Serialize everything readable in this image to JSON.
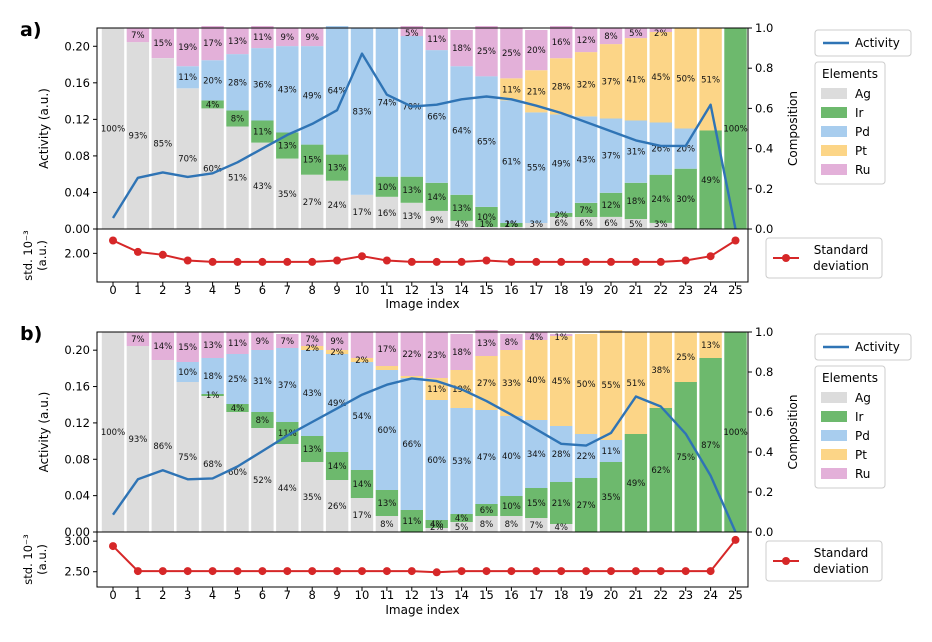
{
  "colors": {
    "Ag": "#dcdcdc",
    "Ir": "#6db96d",
    "Pd": "#a8cdee",
    "Pt": "#fcd587",
    "Ru": "#e3b0d9",
    "activity": "#2f74b5",
    "std": "#d62728"
  },
  "chart_data": [
    {
      "panel_label": "a)",
      "type": "bar",
      "stacked": true,
      "categories": [
        0,
        1,
        2,
        3,
        4,
        5,
        6,
        7,
        8,
        9,
        10,
        11,
        12,
        13,
        14,
        15,
        16,
        17,
        18,
        19,
        20,
        21,
        22,
        23,
        24,
        25
      ],
      "series_order": [
        "Ag",
        "Ir",
        "Pd",
        "Pt",
        "Ru"
      ],
      "composition": {
        "Ag": [
          100,
          93,
          85,
          70,
          60,
          51,
          43,
          35,
          27,
          24,
          17,
          16,
          13,
          9,
          4,
          1,
          1,
          3,
          6,
          6,
          6,
          5,
          3,
          0,
          0,
          0
        ],
        "Ir": [
          0,
          0,
          0,
          0,
          4,
          8,
          11,
          13,
          15,
          13,
          0,
          10,
          13,
          14,
          13,
          10,
          2,
          0,
          2,
          7,
          12,
          18,
          24,
          30,
          49,
          100
        ],
        "Pd": [
          0,
          0,
          0,
          11,
          20,
          28,
          36,
          43,
          49,
          64,
          83,
          74,
          70,
          66,
          64,
          65,
          61,
          55,
          49,
          43,
          37,
          31,
          26,
          20,
          0,
          0
        ],
        "Pt": [
          0,
          0,
          0,
          0,
          0,
          0,
          0,
          0,
          0,
          0,
          0,
          0,
          0,
          0,
          0,
          0,
          11,
          21,
          28,
          32,
          37,
          41,
          45,
          50,
          51,
          0
        ],
        "Ru": [
          0,
          7,
          15,
          19,
          17,
          13,
          11,
          9,
          9,
          0,
          0,
          0,
          5,
          11,
          18,
          25,
          25,
          20,
          16,
          12,
          8,
          5,
          2,
          0,
          0,
          0
        ]
      },
      "composition_labels": {
        "Ag": [
          "100%",
          "93%",
          "85%",
          "70%",
          "60%",
          "51%",
          "43%",
          "35%",
          "27%",
          "24%",
          "17%",
          "16%",
          "13%",
          "9%",
          "4%",
          "1%",
          "1%",
          "3%",
          "6%",
          "6%",
          "6%",
          "5%",
          "3%",
          "",
          "",
          ""
        ],
        "Ir": [
          "",
          "",
          "",
          "",
          "4%",
          "8%",
          "11%",
          "13%",
          "15%",
          "13%",
          "",
          "10%",
          "13%",
          "14%",
          "13%",
          "10%",
          "2%",
          "",
          "2%",
          "7%",
          "12%",
          "18%",
          "24%",
          "30%",
          "49%",
          "100%"
        ],
        "Pd": [
          "",
          "",
          "",
          "11%",
          "20%",
          "28%",
          "36%",
          "43%",
          "49%",
          "64%",
          "83%",
          "74%",
          "70%",
          "66%",
          "64%",
          "65%",
          "61%",
          "55%",
          "49%",
          "43%",
          "37%",
          "31%",
          "26%",
          "20%",
          "",
          ""
        ],
        "Pt": [
          "",
          "",
          "",
          "",
          "",
          "",
          "",
          "",
          "",
          "",
          "",
          "",
          "",
          "",
          "",
          "",
          "11%",
          "21%",
          "28%",
          "32%",
          "37%",
          "41%",
          "45%",
          "50%",
          "51%",
          ""
        ],
        "Ru": [
          "",
          "7%",
          "15%",
          "19%",
          "17%",
          "13%",
          "11%",
          "9%",
          "9%",
          "",
          "",
          "",
          "5%",
          "11%",
          "18%",
          "25%",
          "25%",
          "20%",
          "16%",
          "12%",
          "8%",
          "5%",
          "2%",
          "",
          "",
          ""
        ]
      },
      "activity": [
        0.012,
        0.056,
        0.062,
        0.057,
        0.061,
        0.073,
        0.088,
        0.103,
        0.115,
        0.13,
        0.192,
        0.147,
        0.134,
        0.136,
        0.142,
        0.145,
        0.142,
        0.135,
        0.127,
        0.117,
        0.107,
        0.097,
        0.091,
        0.091,
        0.136,
        0.0
      ],
      "std": [
        2.9,
        2.1,
        1.9,
        1.5,
        1.4,
        1.4,
        1.4,
        1.4,
        1.4,
        1.5,
        1.8,
        1.5,
        1.4,
        1.4,
        1.4,
        1.5,
        1.4,
        1.4,
        1.4,
        1.4,
        1.4,
        1.4,
        1.4,
        1.5,
        1.8,
        2.9
      ],
      "ylabel": "Activity (a.u.)",
      "ylabel_right": "Composition",
      "ylim": [
        0,
        0.22
      ],
      "yticks": [
        "0.00",
        "0.04",
        "0.08",
        "0.12",
        "0.16",
        "0.20"
      ],
      "yticks_right": [
        "0.0",
        "0.2",
        "0.4",
        "0.6",
        "0.8",
        "1.0"
      ],
      "std_ylabel": [
        "std. 10⁻³",
        "(a.u.)"
      ],
      "std_ylim": [
        0,
        3.7
      ],
      "std_yticks": [
        2.0
      ],
      "std_yticklabels": [
        "2.00"
      ],
      "xlabel": "Image index",
      "legend_activity": "Activity",
      "legend_elements_title": "Elements",
      "legend_elements": [
        "Ag",
        "Ir",
        "Pd",
        "Pt",
        "Ru"
      ],
      "legend_std": [
        "Standard",
        "deviation"
      ]
    },
    {
      "panel_label": "b)",
      "type": "bar",
      "stacked": true,
      "categories": [
        0,
        1,
        2,
        3,
        4,
        5,
        6,
        7,
        8,
        9,
        10,
        11,
        12,
        13,
        14,
        15,
        16,
        17,
        18,
        19,
        20,
        21,
        22,
        23,
        24,
        25
      ],
      "series_order": [
        "Ag",
        "Ir",
        "Pd",
        "Pt",
        "Ru"
      ],
      "composition": {
        "Ag": [
          100,
          93,
          86,
          75,
          68,
          60,
          52,
          44,
          35,
          26,
          17,
          8,
          0,
          2,
          5,
          8,
          8,
          7,
          4,
          0,
          0,
          0,
          0,
          0,
          0,
          0
        ],
        "Ir": [
          0,
          0,
          0,
          0,
          1,
          4,
          8,
          11,
          13,
          14,
          14,
          13,
          11,
          4,
          4,
          6,
          10,
          15,
          21,
          27,
          35,
          49,
          62,
          75,
          87,
          100
        ],
        "Pd": [
          0,
          0,
          0,
          10,
          18,
          25,
          31,
          37,
          43,
          49,
          54,
          60,
          66,
          60,
          53,
          47,
          40,
          34,
          28,
          22,
          11,
          0,
          0,
          0,
          0,
          0
        ],
        "Pt": [
          0,
          0,
          0,
          0,
          0,
          0,
          0,
          0,
          2,
          2,
          2,
          2,
          1,
          11,
          19,
          27,
          33,
          40,
          45,
          50,
          55,
          51,
          38,
          25,
          13,
          0
        ],
        "Ru": [
          0,
          7,
          14,
          15,
          13,
          11,
          9,
          7,
          7,
          9,
          13,
          17,
          22,
          23,
          18,
          13,
          8,
          4,
          1,
          0,
          0,
          0,
          0,
          0,
          0,
          0
        ]
      },
      "composition_labels": {
        "Ag": [
          "100%",
          "93%",
          "86%",
          "75%",
          "68%",
          "60%",
          "52%",
          "44%",
          "35%",
          "26%",
          "17%",
          "8%",
          "",
          "2%",
          "5%",
          "8%",
          "8%",
          "7%",
          "4%",
          "",
          "",
          "",
          "",
          "",
          "",
          ""
        ],
        "Ir": [
          "",
          "",
          "",
          "",
          "1%",
          "4%",
          "8%",
          "11%",
          "13%",
          "14%",
          "14%",
          "13%",
          "11%",
          "4%",
          "4%",
          "6%",
          "10%",
          "15%",
          "21%",
          "27%",
          "35%",
          "49%",
          "62%",
          "75%",
          "87%",
          "100%"
        ],
        "Pd": [
          "",
          "",
          "",
          "10%",
          "18%",
          "25%",
          "31%",
          "37%",
          "43%",
          "49%",
          "54%",
          "60%",
          "66%",
          "60%",
          "53%",
          "47%",
          "40%",
          "34%",
          "28%",
          "22%",
          "11%",
          "",
          "",
          "",
          "",
          ""
        ],
        "Pt": [
          "",
          "",
          "",
          "",
          "",
          "",
          "",
          "",
          "2%",
          "2%",
          "2%",
          "",
          "",
          "11%",
          "19%",
          "27%",
          "33%",
          "40%",
          "45%",
          "50%",
          "55%",
          "51%",
          "38%",
          "25%",
          "13%",
          ""
        ],
        "Ru": [
          "",
          "7%",
          "14%",
          "15%",
          "13%",
          "11%",
          "9%",
          "7%",
          "7%",
          "9%",
          "",
          "17%",
          "22%",
          "23%",
          "18%",
          "13%",
          "8%",
          "4%",
          "1%",
          "",
          "",
          "",
          "",
          "",
          "",
          ""
        ]
      },
      "activity": [
        0.019,
        0.058,
        0.068,
        0.058,
        0.059,
        0.072,
        0.089,
        0.106,
        0.121,
        0.136,
        0.151,
        0.162,
        0.169,
        0.166,
        0.157,
        0.144,
        0.129,
        0.113,
        0.097,
        0.095,
        0.109,
        0.149,
        0.138,
        0.108,
        0.062,
        0.0
      ],
      "std": [
        2.92,
        2.51,
        2.51,
        2.51,
        2.51,
        2.51,
        2.51,
        2.51,
        2.51,
        2.51,
        2.51,
        2.51,
        2.51,
        2.49,
        2.51,
        2.51,
        2.51,
        2.51,
        2.51,
        2.51,
        2.51,
        2.51,
        2.51,
        2.51,
        2.51,
        3.02
      ],
      "ylabel": "Activity (a.u.)",
      "ylabel_right": "Composition",
      "ylim": [
        0,
        0.22
      ],
      "yticks": [
        "0.00",
        "0.04",
        "0.08",
        "0.12",
        "0.16",
        "0.20"
      ],
      "yticks_right": [
        "0.0",
        "0.2",
        "0.4",
        "0.6",
        "0.8",
        "1.0"
      ],
      "std_ylabel": [
        "std. 10⁻³",
        "(a.u.)"
      ],
      "std_ylim": [
        2.25,
        3.15
      ],
      "std_yticks": [
        2.5,
        3.0
      ],
      "std_yticklabels": [
        "2.50",
        "3.00"
      ],
      "xlabel": "Image index",
      "legend_activity": "Activity",
      "legend_elements_title": "Elements",
      "legend_elements": [
        "Ag",
        "Ir",
        "Pd",
        "Pt",
        "Ru"
      ],
      "legend_std": [
        "Standard",
        "deviation"
      ]
    }
  ]
}
